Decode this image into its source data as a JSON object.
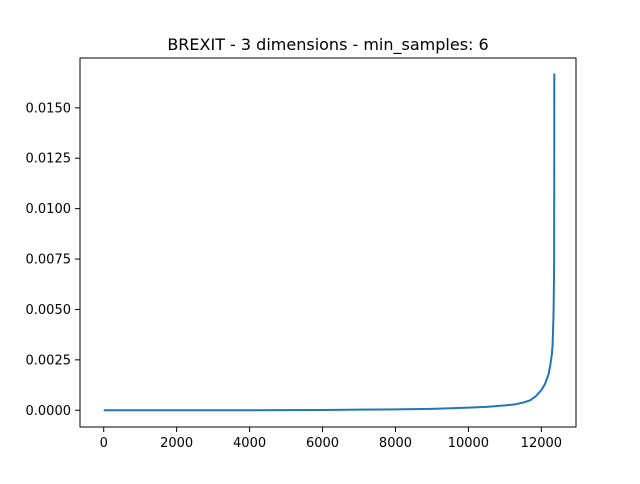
{
  "chart_data": {
    "type": "line",
    "title": "BREXIT - 3 dimensions - min_samples: 6",
    "xlabel": "",
    "ylabel": "",
    "xlim": [
      -650,
      12950
    ],
    "ylim": [
      -0.00083,
      0.01747
    ],
    "xticks": [
      0,
      2000,
      4000,
      6000,
      8000,
      10000,
      12000
    ],
    "xtick_labels": [
      "0",
      "2000",
      "4000",
      "6000",
      "8000",
      "10000",
      "12000"
    ],
    "yticks": [
      0.0,
      0.0025,
      0.005,
      0.0075,
      0.01,
      0.0125,
      0.015
    ],
    "ytick_labels": [
      "0.0000",
      "0.0025",
      "0.0050",
      "0.0075",
      "0.0100",
      "0.0125",
      "0.0150"
    ],
    "grid": false,
    "series": [
      {
        "color": "#1f77b4",
        "x": [
          0,
          2000,
          4000,
          5000,
          6000,
          7000,
          8000,
          8500,
          9000,
          9500,
          10000,
          10500,
          11000,
          11300,
          11500,
          11700,
          11850,
          12000,
          12100,
          12200,
          12250,
          12290,
          12310,
          12330,
          12340,
          12350,
          12353,
          12355
        ],
        "y": [
          0.0,
          0.0,
          0.0,
          5e-06,
          1.5e-05,
          3e-05,
          4.5e-05,
          5.5e-05,
          7e-05,
          0.0001,
          0.00013,
          0.00017,
          0.00024,
          0.0003,
          0.00038,
          0.0005,
          0.0007,
          0.001,
          0.0013,
          0.0018,
          0.0023,
          0.0028,
          0.0033,
          0.0045,
          0.0055,
          0.0072,
          0.011,
          0.0167
        ]
      }
    ]
  }
}
